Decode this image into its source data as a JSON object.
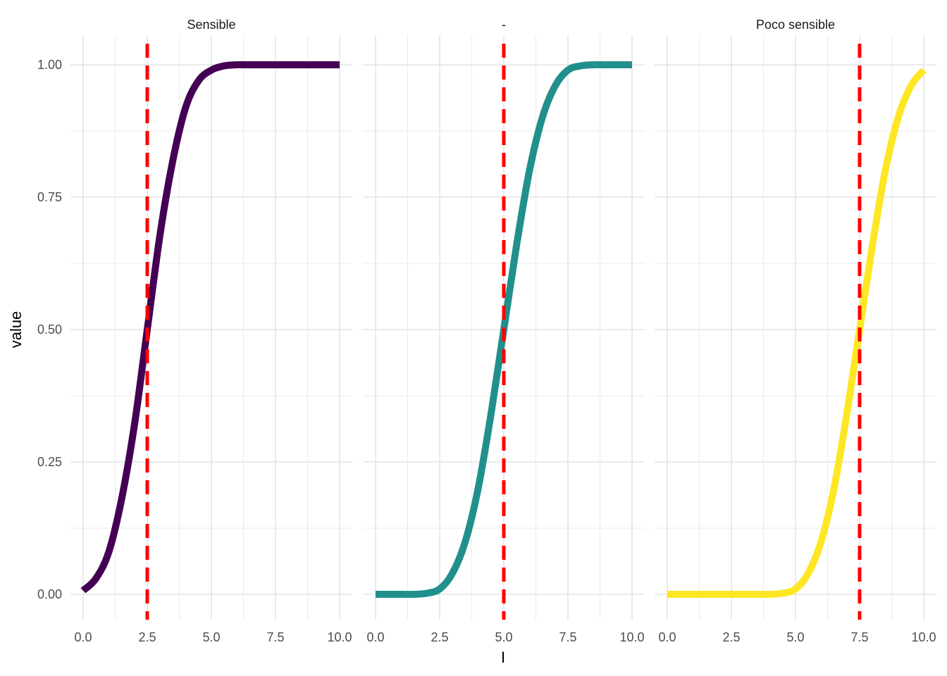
{
  "figure": {
    "ylabel": "value",
    "xlabel": "I"
  },
  "chart_data": {
    "type": "line",
    "xlabel": "I",
    "ylabel": "value",
    "xlim": [
      0,
      10
    ],
    "ylim": [
      0,
      1
    ],
    "x_ticks": [
      0,
      2.5,
      5,
      7.5,
      10
    ],
    "x_tick_labels": [
      "0.0",
      "2.5",
      "5.0",
      "7.5",
      "10.0"
    ],
    "y_ticks": [
      0,
      0.25,
      0.5,
      0.75,
      1
    ],
    "y_tick_labels": [
      "0.00",
      "0.25",
      "0.50",
      "0.75",
      "1.00"
    ],
    "grid": true,
    "legend": "none",
    "reference_line_color": "#ff0000",
    "panels": [
      {
        "title": "Sensible",
        "color": "#440154",
        "threshold": 2.5,
        "x": [
          0,
          0.5,
          1,
          1.5,
          2,
          2.5,
          3,
          3.5,
          4,
          4.5,
          5,
          5.5,
          6,
          6.5,
          7,
          7.5,
          8,
          8.5,
          9,
          9.5,
          10
        ],
        "y": [
          0.007,
          0.03,
          0.08,
          0.18,
          0.32,
          0.5,
          0.68,
          0.82,
          0.92,
          0.97,
          0.99,
          0.998,
          1,
          1,
          1,
          1,
          1,
          1,
          1,
          1,
          1
        ]
      },
      {
        "title": "-",
        "color": "#21908c",
        "threshold": 5,
        "x": [
          0,
          0.5,
          1,
          1.5,
          2,
          2.5,
          3,
          3.5,
          4,
          4.5,
          5,
          5.5,
          6,
          6.5,
          7,
          7.5,
          8,
          8.5,
          9,
          9.5,
          10
        ],
        "y": [
          0,
          0,
          0,
          0,
          0.002,
          0.01,
          0.04,
          0.1,
          0.2,
          0.34,
          0.5,
          0.66,
          0.8,
          0.9,
          0.96,
          0.99,
          0.998,
          1,
          1,
          1,
          1
        ]
      },
      {
        "title": "Poco sensible",
        "color": "#fde725",
        "threshold": 7.5,
        "x": [
          0,
          0.5,
          1,
          1.5,
          2,
          2.5,
          3,
          3.5,
          4,
          4.5,
          5,
          5.5,
          6,
          6.5,
          7,
          7.5,
          8,
          8.5,
          9,
          9.5,
          10
        ],
        "y": [
          0,
          0,
          0,
          0,
          0,
          0,
          0,
          0,
          0,
          0.002,
          0.01,
          0.04,
          0.1,
          0.2,
          0.34,
          0.5,
          0.66,
          0.8,
          0.9,
          0.96,
          0.99
        ]
      }
    ]
  }
}
